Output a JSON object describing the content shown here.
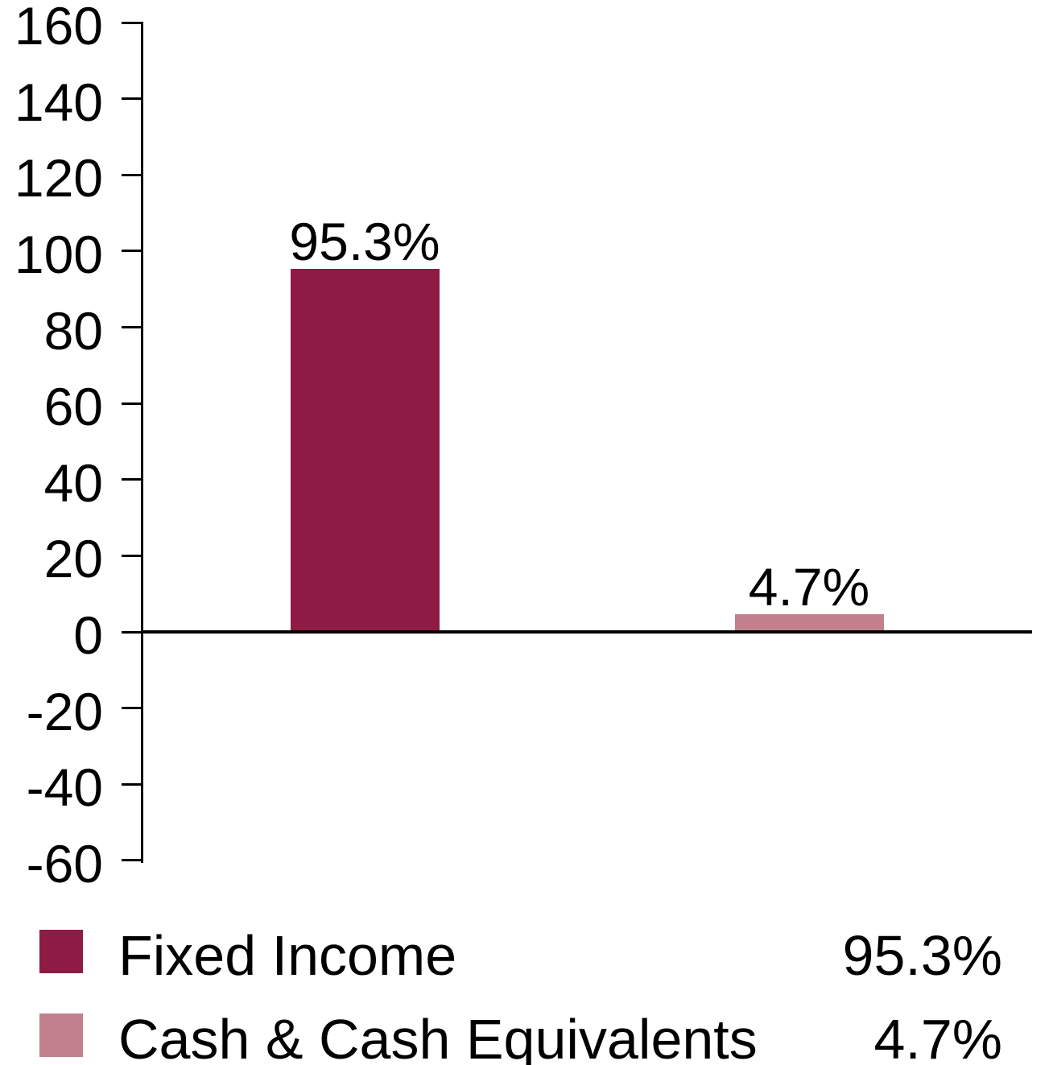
{
  "chart_data": {
    "type": "bar",
    "categories": [
      "Fixed Income",
      "Cash & Cash Equivalents"
    ],
    "values": [
      95.3,
      4.7
    ],
    "bar_labels": [
      "95.3%",
      "4.7%"
    ],
    "bar_colors": [
      "#8E1B44",
      "#C2808D"
    ],
    "title": "",
    "xlabel": "",
    "ylabel": "",
    "ylim": [
      -60,
      160
    ],
    "yticks": [
      160,
      140,
      120,
      100,
      80,
      60,
      40,
      20,
      0,
      -20,
      -40,
      -60
    ],
    "grid": false,
    "legend_position": "bottom"
  },
  "legend": {
    "items": [
      {
        "label": "Fixed Income",
        "value": "95.3%",
        "color": "#8E1B44"
      },
      {
        "label": "Cash & Cash Equivalents",
        "value": "4.7%",
        "color": "#C2808D"
      }
    ]
  },
  "colors": {
    "axis": "#000000",
    "text": "#000000",
    "background": "#FFFFFF",
    "accent_dark": "#8E1B44",
    "accent_light": "#C2808D"
  }
}
